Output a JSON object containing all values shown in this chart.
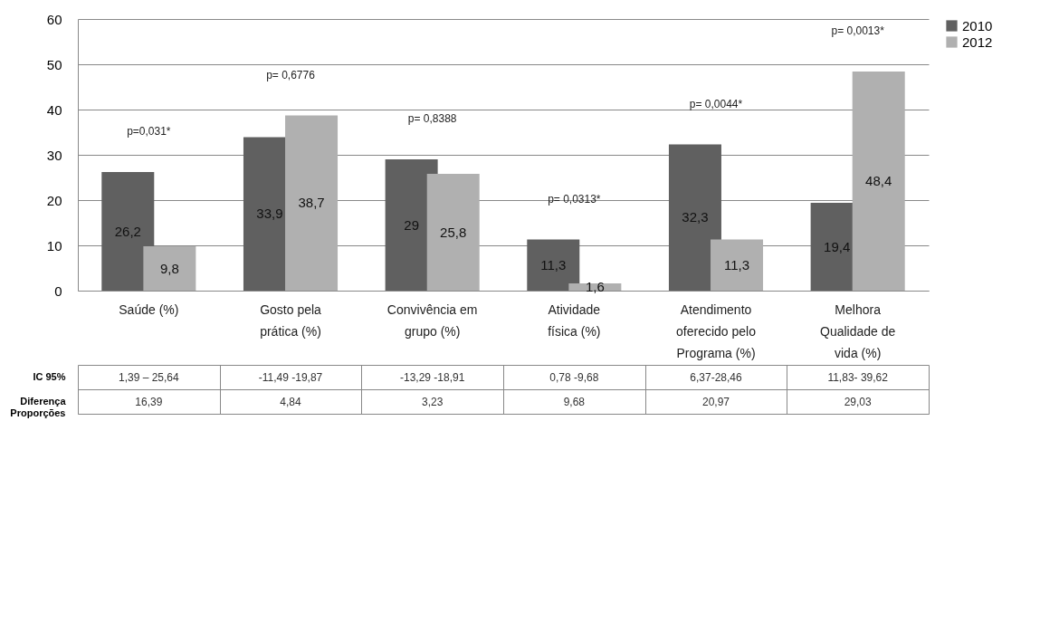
{
  "chart_data": {
    "type": "bar",
    "categories": [
      "Saúde (%)",
      "Gosto pela prática (%)",
      "Convivência em grupo (%)",
      "Atividade física (%)",
      "Atendimento oferecido pelo Programa (%)",
      "Melhora Qualidade de vida (%)"
    ],
    "series": [
      {
        "name": "2010",
        "color": "#606060",
        "values": [
          26.2,
          33.9,
          29,
          11.3,
          32.3,
          19.4
        ],
        "value_labels": [
          "26,2",
          "33,9",
          "29",
          "11,3",
          "32,3",
          "19,4"
        ]
      },
      {
        "name": "2012",
        "color": "#b0b0b0",
        "values": [
          9.8,
          38.7,
          25.8,
          1.6,
          11.3,
          48.4
        ],
        "value_labels": [
          "9,8",
          "38,7",
          "25,8",
          "1,6",
          "11,3",
          "48,4"
        ]
      }
    ],
    "ylim": [
      0,
      60
    ],
    "yticks": [
      0,
      10,
      20,
      30,
      40,
      50,
      60
    ],
    "grid": "y",
    "legend": "right",
    "annotations": [
      "p=0,031*",
      "p= 0,6776",
      "p= 0,8388",
      "p= 0,0313*",
      "p= 0,0044*",
      "p= 0,0013*",
      "IC 95%",
      "1,39 – 25,64",
      "-11,49 -19,87",
      "-13,29 -18,91",
      "0,78 -9,68",
      "6,37-28,46",
      "11,83- 39,62",
      "Diferença Proporções",
      "16,39",
      "4,84",
      "3,23",
      "9,68",
      "20,97",
      "29,03"
    ]
  }
}
